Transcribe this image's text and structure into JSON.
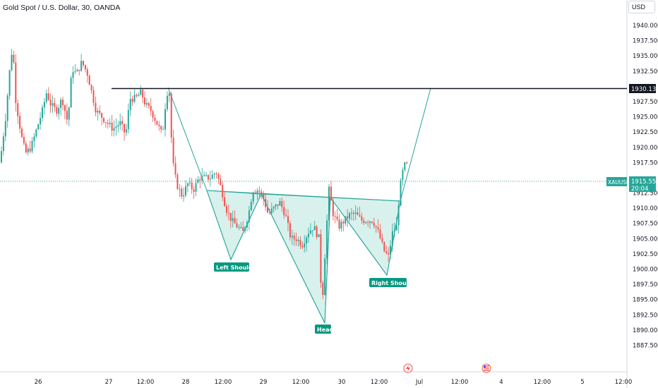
{
  "header": {
    "title": "Gold Spot / U.S. Dollar, 30, OANDA",
    "currency": "USD"
  },
  "colors": {
    "up": "#26a69a",
    "down": "#ef5350",
    "pattern_fill": "#c8ebe6",
    "pattern_line": "#26a69a",
    "resistance": "#131722",
    "last_price_line": "#26a69a",
    "label_bg": "#089981"
  },
  "price_axis": {
    "ticks": [
      "1940.000",
      "1937.500",
      "1935.000",
      "1932.500",
      "1927.500",
      "1925.000",
      "1922.500",
      "1920.000",
      "1917.500",
      "1912.500",
      "1910.000",
      "1907.500",
      "1905.000",
      "1902.500",
      "1900.000",
      "1897.500",
      "1895.000",
      "1892.500",
      "1890.000",
      "1887.500"
    ]
  },
  "time_axis": {
    "labels": [
      "26",
      "27",
      "12:00",
      "28",
      "12:00",
      "29",
      "12:00",
      "30",
      "12:00",
      "Jul",
      "12:00",
      "4",
      "12:00",
      "5",
      "12:00"
    ]
  },
  "resistance": {
    "price": 1930.139,
    "label": "1930.139"
  },
  "last_price": {
    "symbol": "XAUUSD",
    "price": "1915.555",
    "countdown": "20:04"
  },
  "annotations": {
    "left_shoulder": "Left Shoulder",
    "head": "Head",
    "right_shoulder": "Right Shoulder"
  },
  "event_icons": [
    "lightning-icon",
    "us-flag-icon"
  ]
}
